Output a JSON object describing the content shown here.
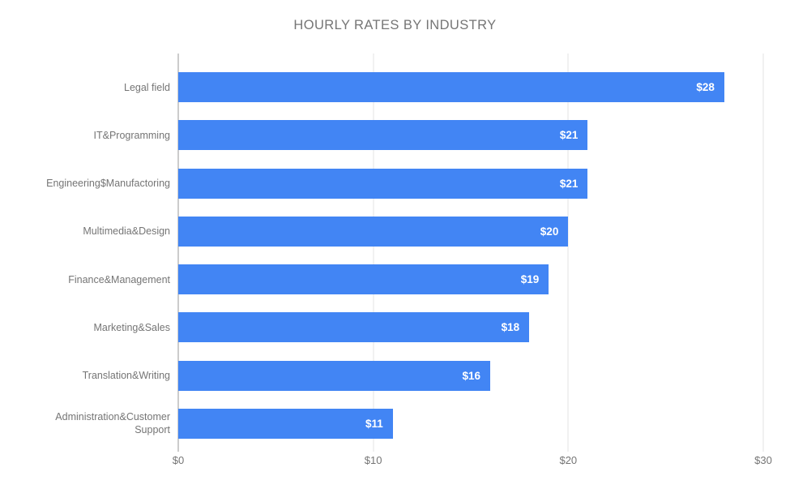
{
  "chart_data": {
    "type": "bar",
    "orientation": "horizontal",
    "title": "HOURLY RATES BY INDUSTRY",
    "categories": [
      "Legal field",
      "IT&Programming",
      "Engineering$Manufactoring",
      "Multimedia&Design",
      "Finance&Management",
      "Marketing&Sales",
      "Translation&Writing",
      "Administration&Customer Support"
    ],
    "values": [
      28,
      21,
      21,
      20,
      19,
      18,
      16,
      11
    ],
    "value_labels": [
      "$28",
      "$21",
      "$21",
      "$20",
      "$19",
      "$18",
      "$16",
      "$11"
    ],
    "xlabel": "",
    "ylabel": "",
    "x_ticks": [
      "$0",
      "$10",
      "$20",
      "$30"
    ],
    "x_tick_values": [
      0,
      10,
      20,
      30
    ],
    "xlim": [
      0,
      30
    ],
    "grid": true,
    "legend": "none",
    "colors": {
      "bar": "#4285f4",
      "bar_label": "#ffffff",
      "title": "#757575",
      "category_label": "#757575",
      "tick_label": "#757575",
      "gridline": "#e3e3e3",
      "axis_line": "#9a9a9a",
      "background": "#ffffff"
    }
  }
}
